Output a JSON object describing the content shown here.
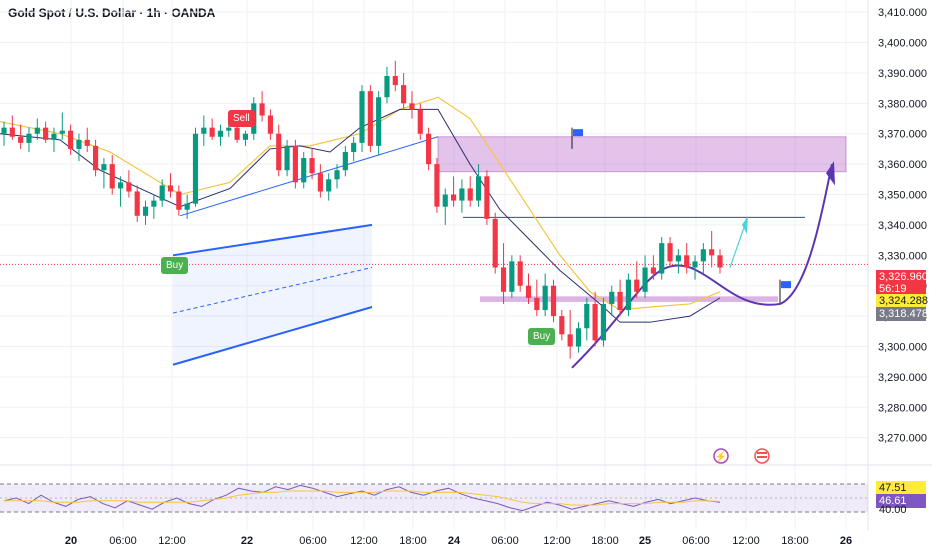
{
  "header": {
    "title": "Gold Spot / U.S. Dollar · 1h · OANDA"
  },
  "colors": {
    "up": "#089981",
    "down": "#f23645",
    "zone": "#9c27b0",
    "channel": "#2962ff",
    "rsi": "#7e57c2",
    "ma_yellow": "#f5c542",
    "ma_navy": "#2a2e6e",
    "price_line": "#f23645"
  },
  "chart_data": [
    {
      "type": "candlestick",
      "title": "Gold Spot / U.S. Dollar · 1h · OANDA",
      "ylim": [
        3262,
        3414
      ],
      "y_ticks": [
        "3,410.000",
        "3,400.000",
        "3,390.000",
        "3,380.000",
        "3,370.000",
        "3,360.000",
        "3,350.000",
        "3,340.000",
        "3,330.000",
        "3,320.000",
        "3,310.000",
        "3,300.000",
        "3,290.000",
        "3,280.000",
        "3,270.000"
      ],
      "x_ticks": [
        {
          "label": "20",
          "bold": true
        },
        {
          "label": "06:00",
          "bold": false
        },
        {
          "label": "12:00",
          "bold": false
        },
        {
          "label": "22",
          "bold": true
        },
        {
          "label": "06:00",
          "bold": false
        },
        {
          "label": "12:00",
          "bold": false
        },
        {
          "label": "18:00",
          "bold": false
        },
        {
          "label": "24",
          "bold": true
        },
        {
          "label": "06:00",
          "bold": false
        },
        {
          "label": "12:00",
          "bold": false
        },
        {
          "label": "18:00",
          "bold": false
        },
        {
          "label": "25",
          "bold": true
        },
        {
          "label": "06:00",
          "bold": false
        },
        {
          "label": "12:00",
          "bold": false
        },
        {
          "label": "18:00",
          "bold": false
        },
        {
          "label": "26",
          "bold": true
        }
      ],
      "candles": [
        [
          3370,
          3374,
          3366,
          3372
        ],
        [
          3372,
          3376,
          3368,
          3369
        ],
        [
          3369,
          3373,
          3365,
          3367
        ],
        [
          3367,
          3372,
          3364,
          3370
        ],
        [
          3370,
          3375,
          3368,
          3372
        ],
        [
          3372,
          3374,
          3367,
          3368
        ],
        [
          3368,
          3372,
          3364,
          3370
        ],
        [
          3370,
          3377,
          3368,
          3371
        ],
        [
          3371,
          3373,
          3363,
          3365
        ],
        [
          3365,
          3370,
          3361,
          3368
        ],
        [
          3368,
          3372,
          3364,
          3366
        ],
        [
          3366,
          3368,
          3356,
          3358
        ],
        [
          3358,
          3362,
          3352,
          3360
        ],
        [
          3360,
          3363,
          3350,
          3352
        ],
        [
          3352,
          3356,
          3346,
          3354
        ],
        [
          3354,
          3358,
          3349,
          3351
        ],
        [
          3351,
          3353,
          3341,
          3343
        ],
        [
          3343,
          3348,
          3340,
          3346
        ],
        [
          3346,
          3350,
          3342,
          3348
        ],
        [
          3348,
          3355,
          3346,
          3353
        ],
        [
          3353,
          3357,
          3349,
          3351
        ],
        [
          3351,
          3353,
          3343,
          3345
        ],
        [
          3345,
          3350,
          3342,
          3347
        ],
        [
          3347,
          3372,
          3346,
          3370
        ],
        [
          3370,
          3376,
          3366,
          3372
        ],
        [
          3372,
          3375,
          3368,
          3369
        ],
        [
          3369,
          3373,
          3366,
          3371
        ],
        [
          3371,
          3374,
          3369,
          3372
        ],
        [
          3372,
          3373,
          3367,
          3368
        ],
        [
          3368,
          3371,
          3366,
          3370
        ],
        [
          3370,
          3382,
          3368,
          3380
        ],
        [
          3380,
          3384,
          3374,
          3376
        ],
        [
          3376,
          3378,
          3368,
          3370
        ],
        [
          3370,
          3373,
          3356,
          3358
        ],
        [
          3358,
          3368,
          3356,
          3366
        ],
        [
          3366,
          3368,
          3352,
          3354
        ],
        [
          3354,
          3364,
          3352,
          3362
        ],
        [
          3362,
          3365,
          3355,
          3357
        ],
        [
          3357,
          3360,
          3349,
          3351
        ],
        [
          3351,
          3357,
          3348,
          3355
        ],
        [
          3355,
          3360,
          3352,
          3358
        ],
        [
          3358,
          3366,
          3356,
          3364
        ],
        [
          3364,
          3369,
          3361,
          3367
        ],
        [
          3367,
          3386,
          3364,
          3384
        ],
        [
          3384,
          3386,
          3364,
          3366
        ],
        [
          3366,
          3384,
          3363,
          3382
        ],
        [
          3382,
          3392,
          3380,
          3389
        ],
        [
          3389,
          3394,
          3384,
          3386
        ],
        [
          3386,
          3390,
          3378,
          3380
        ],
        [
          3380,
          3384,
          3375,
          3378
        ],
        [
          3378,
          3380,
          3368,
          3370
        ],
        [
          3370,
          3372,
          3358,
          3360
        ],
        [
          3360,
          3362,
          3344,
          3346
        ],
        [
          3346,
          3352,
          3340,
          3350
        ],
        [
          3350,
          3356,
          3346,
          3348
        ],
        [
          3348,
          3355,
          3344,
          3352
        ],
        [
          3352,
          3356,
          3346,
          3348
        ],
        [
          3348,
          3360,
          3346,
          3356
        ],
        [
          3356,
          3358,
          3340,
          3342
        ],
        [
          3342,
          3344,
          3324,
          3326
        ],
        [
          3326,
          3334,
          3314,
          3318
        ],
        [
          3318,
          3330,
          3316,
          3328
        ],
        [
          3328,
          3330,
          3318,
          3320
        ],
        [
          3320,
          3324,
          3314,
          3316
        ],
        [
          3316,
          3322,
          3310,
          3312
        ],
        [
          3312,
          3324,
          3310,
          3320
        ],
        [
          3320,
          3322,
          3308,
          3310
        ],
        [
          3310,
          3312,
          3302,
          3304
        ],
        [
          3304,
          3312,
          3296,
          3300
        ],
        [
          3300,
          3308,
          3298,
          3306
        ],
        [
          3306,
          3316,
          3302,
          3314
        ],
        [
          3314,
          3318,
          3300,
          3302
        ],
        [
          3302,
          3316,
          3300,
          3314
        ],
        [
          3314,
          3320,
          3310,
          3318
        ],
        [
          3318,
          3322,
          3310,
          3312
        ],
        [
          3312,
          3324,
          3310,
          3322
        ],
        [
          3322,
          3328,
          3316,
          3318
        ],
        [
          3318,
          3330,
          3316,
          3326
        ],
        [
          3326,
          3330,
          3322,
          3324
        ],
        [
          3324,
          3336,
          3322,
          3334
        ],
        [
          3334,
          3336,
          3326,
          3328
        ],
        [
          3328,
          3332,
          3324,
          3330
        ],
        [
          3330,
          3334,
          3324,
          3326
        ],
        [
          3326,
          3330,
          3322,
          3328
        ],
        [
          3328,
          3334,
          3324,
          3332
        ],
        [
          3332,
          3338,
          3326,
          3330
        ],
        [
          3330,
          3332,
          3324,
          3326
        ]
      ],
      "annotations": {
        "sell_label": "Sell",
        "buy_labels": [
          "Buy",
          "Buy"
        ],
        "price_badges": [
          {
            "price": "3,326.960",
            "countdown": "56:19",
            "color": "#f23645"
          },
          {
            "price": "3,324.288",
            "color": "#ffeb3b"
          },
          {
            "price": "3,318.478",
            "color": "#787b86"
          }
        ]
      }
    },
    {
      "type": "line",
      "title": "RSI",
      "ylim": [
        30,
        70
      ],
      "last_values": [
        {
          "value": "47.51",
          "color": "#ffeb3b"
        },
        {
          "value": "46.61",
          "color": "#7e57c2"
        }
      ],
      "level_label": "40.00"
    }
  ]
}
